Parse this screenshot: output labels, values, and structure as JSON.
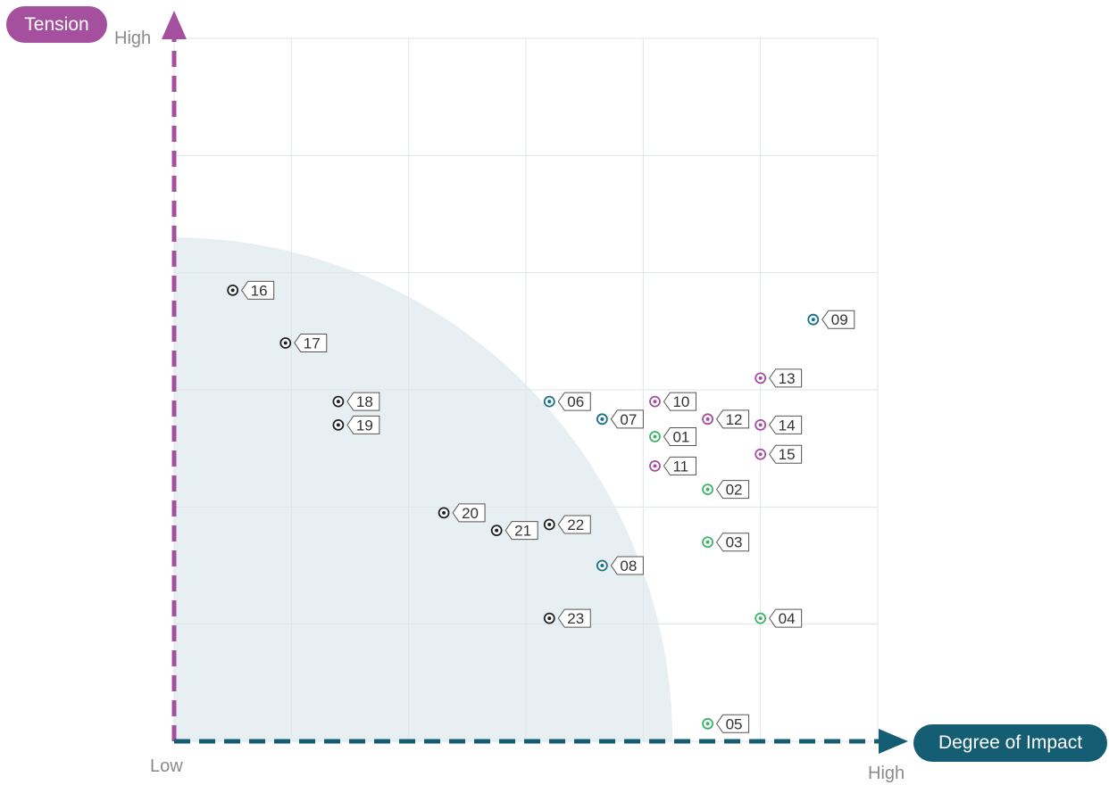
{
  "y_axis": {
    "name": "Tension",
    "high_label": "High",
    "color": "#a4509f"
  },
  "x_axis": {
    "name": "Degree of Impact",
    "low_label": "Low",
    "high_label": "High",
    "color": "#155d73"
  },
  "colors": {
    "purple": "#a4509f",
    "teal": "#17728a",
    "green": "#3db36b",
    "black": "#222222",
    "grid": "#dde6ea",
    "shaded_region": "#e8eff2"
  },
  "chart_data": {
    "type": "scatter",
    "title": "",
    "xlabel": "Degree of Impact",
    "ylabel": "Tension",
    "xlim": [
      0,
      6
    ],
    "ylim": [
      0,
      6
    ],
    "grid": true,
    "shaded_region": {
      "shape": "quarter-ellipse from origin",
      "x_radius": 4.25,
      "y_radius": 4.3
    },
    "points": [
      {
        "label": "01",
        "x": 4.1,
        "y": 2.6,
        "color": "green"
      },
      {
        "label": "02",
        "x": 4.55,
        "y": 2.15,
        "color": "green"
      },
      {
        "label": "03",
        "x": 4.55,
        "y": 1.7,
        "color": "green"
      },
      {
        "label": "04",
        "x": 5.0,
        "y": 1.05,
        "color": "green"
      },
      {
        "label": "05",
        "x": 4.55,
        "y": 0.15,
        "color": "green"
      },
      {
        "label": "06",
        "x": 3.2,
        "y": 2.9,
        "color": "teal"
      },
      {
        "label": "07",
        "x": 3.65,
        "y": 2.75,
        "color": "teal"
      },
      {
        "label": "08",
        "x": 3.65,
        "y": 1.5,
        "color": "teal"
      },
      {
        "label": "09",
        "x": 5.45,
        "y": 3.6,
        "color": "teal"
      },
      {
        "label": "10",
        "x": 4.1,
        "y": 2.9,
        "color": "purple"
      },
      {
        "label": "11",
        "x": 4.1,
        "y": 2.35,
        "color": "purple"
      },
      {
        "label": "12",
        "x": 4.55,
        "y": 2.75,
        "color": "purple"
      },
      {
        "label": "13",
        "x": 5.0,
        "y": 3.1,
        "color": "purple"
      },
      {
        "label": "14",
        "x": 5.0,
        "y": 2.7,
        "color": "purple"
      },
      {
        "label": "15",
        "x": 5.0,
        "y": 2.45,
        "color": "purple"
      },
      {
        "label": "16",
        "x": 0.5,
        "y": 3.85,
        "color": "black"
      },
      {
        "label": "17",
        "x": 0.95,
        "y": 3.4,
        "color": "black"
      },
      {
        "label": "18",
        "x": 1.4,
        "y": 2.9,
        "color": "black"
      },
      {
        "label": "19",
        "x": 1.4,
        "y": 2.7,
        "color": "black"
      },
      {
        "label": "20",
        "x": 2.3,
        "y": 1.95,
        "color": "black"
      },
      {
        "label": "21",
        "x": 2.75,
        "y": 1.8,
        "color": "black"
      },
      {
        "label": "22",
        "x": 3.2,
        "y": 1.85,
        "color": "black"
      },
      {
        "label": "23",
        "x": 3.2,
        "y": 1.05,
        "color": "black"
      }
    ]
  }
}
